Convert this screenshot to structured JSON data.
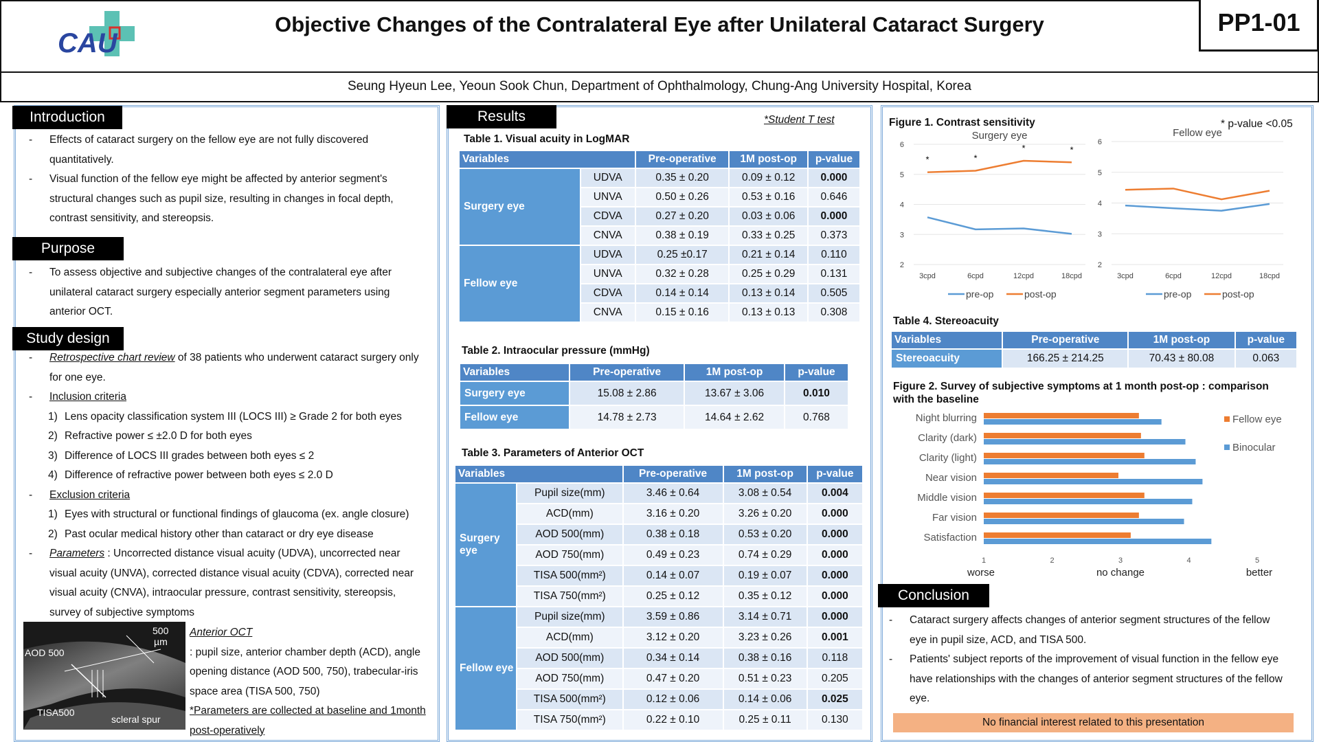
{
  "header": {
    "title": "Objective Changes of the Contralateral Eye after Unilateral Cataract Surgery",
    "code": "PP1-01",
    "authors": "Seung Hyeun Lee, Yeoun Sook Chun, Department of Ophthalmology, Chung-Ang University Hospital, Korea",
    "logo_text": "CAU"
  },
  "intro": {
    "heading": "Introduction",
    "b1": "Effects of cataract surgery on the fellow eye are not fully discovered quantitatively.",
    "b2": "Visual function of the fellow eye might be affected by anterior segment's structural changes such as pupil size, resulting in changes in focal depth, contrast sensitivity, and stereopsis."
  },
  "purpose": {
    "heading": "Purpose",
    "b1": "To assess objective and subjective changes of the contralateral eye after unilateral cataract surgery especially anterior segment parameters using anterior OCT."
  },
  "design": {
    "heading": "Study design",
    "retro_u": "Retrospective chart review",
    "retro_rest": " of 38 patients who underwent cataract surgery only for one eye.",
    "incl": "Inclusion criteria",
    "incl_items": [
      "Lens opacity classification system III (LOCS III) ≥ Grade 2 for both eyes",
      "Refractive power ≤ ±2.0 D for both eyes",
      "Difference of LOCS III grades between both eyes ≤ 2",
      "Difference of refractive power between both eyes ≤ 2.0 D"
    ],
    "excl": "Exclusion criteria",
    "excl_items": [
      "Eyes with structural or functional findings of glaucoma (ex. angle closure)",
      "Past ocular medical history other than cataract or dry eye disease"
    ],
    "param_u": "Parameters",
    "param_rest": " : Uncorrected distance visual acuity (UDVA), uncorrected near visual acuity (UNVA), corrected distance visual acuity (CDVA), corrected near visual acuity (CNVA), intraocular pressure, contrast sensitivity, stereopsis, survey of subjective symptoms",
    "oct_title": "Anterior OCT",
    "oct_desc": ": pupil size, anterior chamber depth (ACD), angle opening distance (AOD 500, 750), trabecular-iris space area (TISA 500, 750)",
    "oct_note": "*Parameters are collected  at baseline and 1month post-operatively",
    "img_labels": {
      "l500": "500",
      "lum": "µm",
      "aod": "AOD 500",
      "tisa": "TISA500",
      "spur": "scleral spur"
    }
  },
  "results": {
    "heading": "Results",
    "ttest": "*Student T test",
    "t1": {
      "caption": "Table 1. Visual acuity in LogMAR",
      "headers": [
        "Variables",
        "Pre-operative",
        "1M post-op",
        "p-value"
      ],
      "g1": "Surgery eye",
      "g2": "Fellow eye",
      "rows": [
        [
          "UDVA",
          "0.35 ± 0.20",
          "0.09 ± 0.12",
          "0.000"
        ],
        [
          "UNVA",
          "0.50 ± 0.26",
          "0.53 ± 0.16",
          "0.646"
        ],
        [
          "CDVA",
          "0.27 ± 0.20",
          "0.03 ± 0.06",
          "0.000"
        ],
        [
          "CNVA",
          "0.38 ± 0.19",
          "0.33 ± 0.25",
          "0.373"
        ],
        [
          "UDVA",
          "0.25 ±0.17",
          "0.21 ± 0.14",
          "0.110"
        ],
        [
          "UNVA",
          "0.32 ± 0.28",
          "0.25 ± 0.29",
          "0.131"
        ],
        [
          "CDVA",
          "0.14 ± 0.14",
          "0.13 ± 0.14",
          "0.505"
        ],
        [
          "CNVA",
          "0.15 ± 0.16",
          "0.13 ± 0.13",
          "0.308"
        ]
      ]
    },
    "t2": {
      "caption": "Table 2. Intraocular pressure (mmHg)",
      "headers": [
        "Variables",
        "Pre-operative",
        "1M post-op",
        "p-value"
      ],
      "rows": [
        [
          "Surgery eye",
          "15.08 ± 2.86",
          "13.67 ± 3.06",
          "0.010"
        ],
        [
          "Fellow eye",
          "14.78 ± 2.73",
          "14.64 ± 2.62",
          "0.768"
        ]
      ]
    },
    "t3": {
      "caption": "Table 3. Parameters of Anterior OCT",
      "headers": [
        "Variables",
        "Pre-operative",
        "1M post-op",
        "p-value"
      ],
      "g1": "Surgery eye",
      "g2": "Fellow eye",
      "rows": [
        [
          "Pupil size(mm)",
          "3.46 ± 0.64",
          "3.08 ± 0.54",
          "0.004"
        ],
        [
          "ACD(mm)",
          "3.16 ± 0.20",
          "3.26 ± 0.20",
          "0.000"
        ],
        [
          "AOD 500(mm)",
          "0.38 ± 0.18",
          "0.53 ± 0.20",
          "0.000"
        ],
        [
          "AOD 750(mm)",
          "0.49 ± 0.23",
          "0.74 ± 0.29",
          "0.000"
        ],
        [
          "TISA 500(mm²)",
          "0.14 ± 0.07",
          "0.19 ± 0.07",
          "0.000"
        ],
        [
          "TISA 750(mm²)",
          "0.25 ± 0.12",
          "0.35 ± 0.12",
          "0.000"
        ],
        [
          "Pupil size(mm)",
          "3.59 ± 0.86",
          "3.14 ± 0.71",
          "0.000"
        ],
        [
          "ACD(mm)",
          "3.12 ± 0.20",
          "3.23 ± 0.26",
          "0.001"
        ],
        [
          "AOD 500(mm)",
          "0.34 ± 0.14",
          "0.38 ± 0.16",
          "0.118"
        ],
        [
          "AOD 750(mm)",
          "0.47 ± 0.20",
          "0.51 ± 0.23",
          "0.205"
        ],
        [
          "TISA 500(mm²)",
          "0.12 ± 0.06",
          "0.14 ± 0.06",
          "0.025"
        ],
        [
          "TISA 750(mm²)",
          "0.22 ± 0.10",
          "0.25 ± 0.11",
          "0.130"
        ]
      ]
    }
  },
  "right": {
    "fig1_caption": "Figure 1. Contrast sensitivity",
    "pnote": "* p-value <0.05",
    "t4": {
      "caption": "Table 4. Stereoacuity",
      "headers": [
        "Variables",
        "Pre-operative",
        "1M post-op",
        "p-value"
      ],
      "row": [
        "Stereoacuity",
        "166.25 ± 214.25",
        "70.43 ± 80.08",
        "0.063"
      ]
    },
    "fig2_caption": "Figure 2. Survey of subjective symptoms at 1 month post-op : comparison with the baseline",
    "axis_words": [
      "worse",
      "no change",
      "better"
    ]
  },
  "conclusion": {
    "heading": "Conclusion",
    "b1": "Cataract surgery affects changes of anterior segment structures of the fellow eye in pupil size, ACD, and TISA 500.",
    "b2": "Patients' subject reports of the improvement of visual function in the fellow eye have relationships with the changes of anterior segment structures of the fellow eye.",
    "disclaimer": "No financial interest related to this presentation"
  },
  "chart_data": [
    {
      "type": "line",
      "title": "Surgery eye",
      "categories": [
        "3cpd",
        "6cpd",
        "12cpd",
        "18cpd"
      ],
      "ylim": [
        2,
        6
      ],
      "yticks": [
        2,
        3,
        4,
        5,
        6
      ],
      "series": [
        {
          "name": "pre-op",
          "color": "#5b9bd5",
          "values": [
            3.57,
            3.17,
            3.2,
            3.02
          ]
        },
        {
          "name": "post-op",
          "color": "#ed7d31",
          "values": [
            5.07,
            5.12,
            5.45,
            5.4
          ]
        }
      ],
      "annotations": [
        "*",
        "*",
        "*",
        "*"
      ]
    },
    {
      "type": "line",
      "title": "Fellow eye",
      "categories": [
        "3cpd",
        "6cpd",
        "12cpd",
        "18cpd"
      ],
      "ylim": [
        2,
        6
      ],
      "yticks": [
        2,
        3,
        4,
        5,
        6
      ],
      "series": [
        {
          "name": "pre-op",
          "color": "#5b9bd5",
          "values": [
            3.92,
            3.83,
            3.75,
            3.97
          ]
        },
        {
          "name": "post-op",
          "color": "#ed7d31",
          "values": [
            4.43,
            4.47,
            4.12,
            4.4
          ]
        }
      ]
    },
    {
      "type": "bar",
      "orientation": "horizontal",
      "categories": [
        "Night blurring",
        "Clarity (dark)",
        "Clarity (light)",
        "Near vision",
        "Middle vision",
        "Far vision",
        "Satisfaction"
      ],
      "xlim": [
        1,
        5
      ],
      "xticks": [
        1,
        2,
        3,
        4,
        5
      ],
      "series": [
        {
          "name": "Fellow eye",
          "color": "#ed7d31",
          "values": [
            3.27,
            3.3,
            3.35,
            2.97,
            3.35,
            3.27,
            3.15
          ]
        },
        {
          "name": "Binocular",
          "color": "#5b9bd5",
          "values": [
            3.6,
            3.95,
            4.1,
            4.2,
            4.05,
            3.93,
            4.33
          ]
        }
      ]
    }
  ]
}
